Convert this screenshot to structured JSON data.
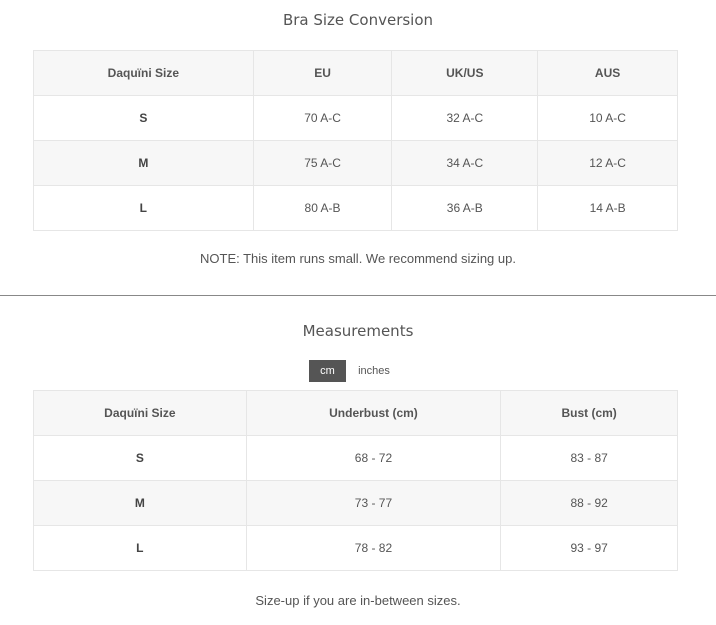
{
  "conversion": {
    "title": "Bra Size Conversion",
    "headers": [
      "Daquïni Size",
      "EU",
      "UK/US",
      "AUS"
    ],
    "rows": [
      [
        "S",
        "70 A-C",
        "32 A-C",
        "10 A-C"
      ],
      [
        "M",
        "75 A-C",
        "34 A-C",
        "12 A-C"
      ],
      [
        "L",
        "80 A-B",
        "36 A-B",
        "14 A-B"
      ]
    ],
    "note": "NOTE: This item runs small. We recommend sizing up."
  },
  "measurements": {
    "title": "Measurements",
    "units": {
      "cm": "cm",
      "inches": "inches",
      "selected": "cm"
    },
    "headers": [
      "Daquïni Size",
      "Underbust (cm)",
      "Bust (cm)"
    ],
    "rows": [
      [
        "S",
        "68 - 72",
        "83 - 87"
      ],
      [
        "M",
        "73 - 77",
        "88 - 92"
      ],
      [
        "L",
        "78 - 82",
        "93 - 97"
      ]
    ],
    "note": "Size-up if you are in-between sizes."
  }
}
